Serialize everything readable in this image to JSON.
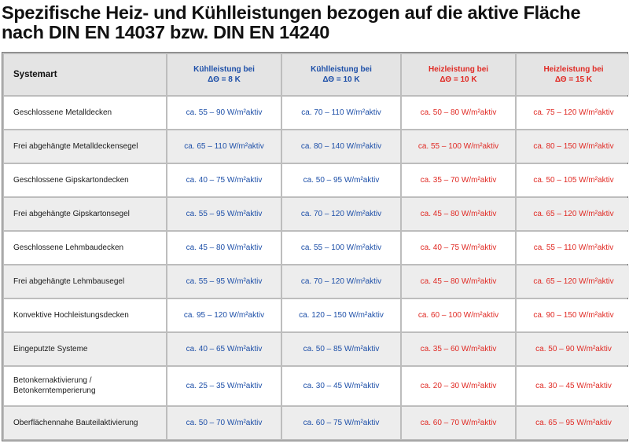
{
  "title": {
    "line1": "Spezifische Heiz- und Kühlleistungen bezogen auf die aktive Fläche",
    "line2": "nach DIN EN 14037 bzw. DIN EN 14240"
  },
  "table": {
    "header": {
      "systemart": "Systemart",
      "cool_8": {
        "line1": "Kühlleistung bei",
        "line2": "ΔΘ = 8 K"
      },
      "cool_10": {
        "line1": "Kühlleistung bei",
        "line2": "ΔΘ = 10 K"
      },
      "heat_10": {
        "line1": "Heizleistung bei",
        "line2": "ΔΘ = 10 K"
      },
      "heat_15": {
        "line1": "Heizleistung bei",
        "line2": "ΔΘ = 15 K"
      }
    },
    "rows": [
      {
        "label": "Geschlossene Metalldecken",
        "label2": "",
        "cool_8": "ca. 55 – 90 W/m²aktiv",
        "cool_10": "ca. 70 – 110 W/m²aktiv",
        "heat_10": "ca. 50 – 80 W/m²aktiv",
        "heat_15": "ca. 75 – 120 W/m²aktiv"
      },
      {
        "label": "Frei abgehängte Metalldeckensegel",
        "label2": "",
        "cool_8": "ca. 65 – 110 W/m²aktiv",
        "cool_10": "ca. 80 – 140 W/m²aktiv",
        "heat_10": "ca. 55 – 100 W/m²aktiv",
        "heat_15": "ca. 80 – 150 W/m²aktiv"
      },
      {
        "label": "Geschlossene Gipskartondecken",
        "label2": "",
        "cool_8": "ca. 40 – 75 W/m²aktiv",
        "cool_10": "ca. 50 – 95 W/m²aktiv",
        "heat_10": "ca. 35 – 70 W/m²aktiv",
        "heat_15": "ca. 50 – 105 W/m²aktiv"
      },
      {
        "label": "Frei abgehängte Gipskartonsegel",
        "label2": "",
        "cool_8": "ca. 55 – 95 W/m²aktiv",
        "cool_10": "ca. 70 – 120 W/m²aktiv",
        "heat_10": "ca. 45 – 80 W/m²aktiv",
        "heat_15": "ca. 65 – 120 W/m²aktiv"
      },
      {
        "label": "Geschlossene Lehmbaudecken",
        "label2": "",
        "cool_8": "ca. 45 – 80 W/m²aktiv",
        "cool_10": "ca. 55 – 100 W/m²aktiv",
        "heat_10": "ca. 40 – 75 W/m²aktiv",
        "heat_15": "ca. 55 – 110 W/m²aktiv"
      },
      {
        "label": "Frei abgehängte Lehmbausegel",
        "label2": "",
        "cool_8": "ca. 55 – 95 W/m²aktiv",
        "cool_10": "ca. 70 – 120 W/m²aktiv",
        "heat_10": "ca. 45 – 80 W/m²aktiv",
        "heat_15": "ca. 65 – 120 W/m²aktiv"
      },
      {
        "label": "Konvektive Hochleistungsdecken",
        "label2": "",
        "cool_8": "ca. 95 – 120 W/m²aktiv",
        "cool_10": "ca. 120 – 150 W/m²aktiv",
        "heat_10": "ca. 60 – 100 W/m²aktiv",
        "heat_15": "ca. 90 – 150 W/m²aktiv"
      },
      {
        "label": "Eingeputzte Systeme",
        "label2": "",
        "cool_8": "ca. 40 – 65 W/m²aktiv",
        "cool_10": "ca. 50 – 85 W/m²aktiv",
        "heat_10": "ca. 35 – 60 W/m²aktiv",
        "heat_15": "ca. 50 – 90 W/m²aktiv"
      },
      {
        "label": "Betonkernaktivierung /",
        "label2": "Betonkerntemperierung",
        "cool_8": "ca. 25 – 35 W/m²aktiv",
        "cool_10": "ca. 30 – 45 W/m²aktiv",
        "heat_10": "ca. 20 – 30 W/m²aktiv",
        "heat_15": "ca. 30 – 45 W/m²aktiv"
      },
      {
        "label": "Oberflächennahe Bauteilaktivierung",
        "label2": "",
        "cool_8": "ca. 50 – 70 W/m²aktiv",
        "cool_10": "ca. 60 – 75 W/m²aktiv",
        "heat_10": "ca. 60 – 70 W/m²aktiv",
        "heat_15": "ca. 65 – 95 W/m²aktiv"
      }
    ]
  },
  "colors": {
    "cooling": "#1d4fa8",
    "heating": "#e02a24"
  }
}
